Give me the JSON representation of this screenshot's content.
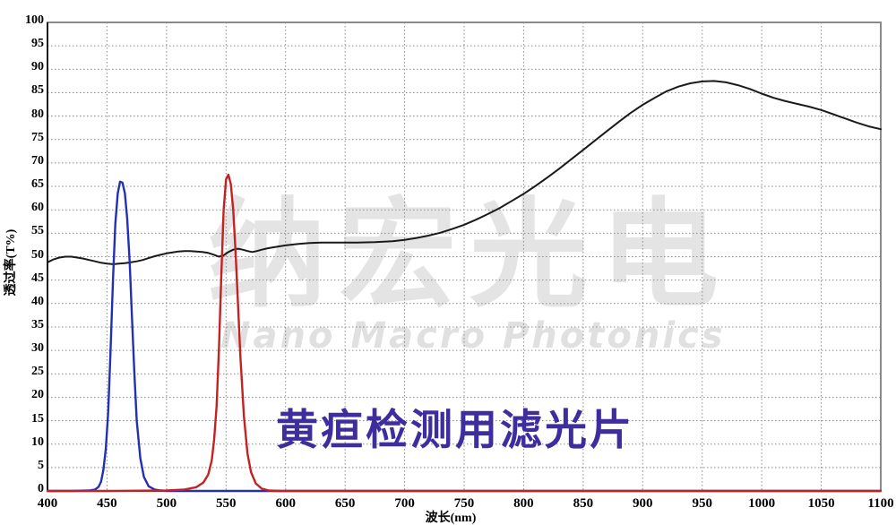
{
  "watermark": {
    "cn": "纳宏光电",
    "en": "Nano Macro Photonics"
  },
  "annotation": {
    "text": "黄疸检测用滤光片",
    "color": "#3e2d9e"
  },
  "axes": {
    "x_label": "波长(nm)",
    "y_label": "透过率(T%)",
    "x_ticks": [
      400,
      450,
      500,
      550,
      600,
      650,
      700,
      750,
      800,
      850,
      900,
      950,
      1000,
      1050,
      1100
    ],
    "y_ticks": [
      0,
      5,
      10,
      15,
      20,
      25,
      30,
      35,
      40,
      45,
      50,
      55,
      60,
      65,
      70,
      75,
      80,
      85,
      90,
      95,
      100
    ]
  },
  "colors": {
    "grid": "#8c8c8c",
    "frame": "#8a8a8a",
    "axis": "#000000",
    "watermark": "#e4e4e4",
    "annotation": "#3e2d9e"
  },
  "chart_data": {
    "type": "line",
    "title": "黄疸检测用滤光片",
    "xlabel": "波长(nm)",
    "ylabel": "透过率(T%)",
    "xlim": [
      400,
      1100
    ],
    "ylim": [
      0,
      100
    ],
    "x_tick_step": 50,
    "y_tick_step": 5,
    "grid": "dotted",
    "legend_position": "none",
    "series": [
      {
        "name": "nir-longpass-curve",
        "color": "#1a1a1a",
        "width": 2,
        "x": [
          400,
          405,
          410,
          415,
          420,
          425,
          430,
          435,
          440,
          445,
          450,
          455,
          460,
          465,
          470,
          475,
          480,
          485,
          490,
          495,
          500,
          505,
          510,
          515,
          520,
          525,
          530,
          535,
          540,
          544,
          548,
          552,
          556,
          560,
          564,
          568,
          572,
          576,
          580,
          585,
          590,
          600,
          610,
          620,
          630,
          645,
          660,
          675,
          690,
          700,
          710,
          720,
          730,
          740,
          750,
          760,
          770,
          780,
          790,
          800,
          810,
          820,
          830,
          840,
          850,
          860,
          870,
          880,
          890,
          900,
          910,
          920,
          930,
          940,
          950,
          960,
          970,
          980,
          990,
          1000,
          1010,
          1020,
          1030,
          1040,
          1050,
          1060,
          1070,
          1080,
          1090,
          1100
        ],
        "y": [
          48.8,
          49.4,
          49.8,
          50.0,
          50.0,
          49.8,
          49.6,
          49.3,
          49.0,
          48.7,
          48.5,
          48.4,
          48.5,
          48.6,
          48.8,
          49.0,
          49.3,
          49.7,
          50.1,
          50.4,
          50.7,
          50.9,
          51.1,
          51.2,
          51.2,
          51.1,
          51.0,
          50.8,
          50.4,
          50.0,
          50.3,
          51.0,
          51.5,
          51.7,
          51.5,
          51.2,
          51.0,
          51.2,
          51.5,
          51.8,
          52.0,
          52.4,
          52.7,
          52.9,
          53.0,
          53.0,
          53.0,
          53.1,
          53.3,
          53.6,
          54.0,
          54.5,
          55.1,
          55.9,
          56.8,
          57.9,
          59.1,
          60.4,
          61.9,
          63.4,
          65.1,
          66.9,
          68.8,
          70.8,
          72.8,
          74.8,
          76.8,
          78.8,
          80.7,
          82.4,
          83.9,
          85.3,
          86.3,
          87.0,
          87.4,
          87.5,
          87.2,
          86.6,
          85.8,
          84.8,
          83.9,
          83.2,
          82.6,
          82.0,
          81.3,
          80.4,
          79.5,
          78.6,
          77.8,
          77.2
        ]
      },
      {
        "name": "blue-bandpass-460nm",
        "color": "#2230b4",
        "width": 2.4,
        "x": [
          400,
          420,
          435,
          440,
          443,
          445,
          447,
          449,
          451,
          453,
          455,
          457,
          459,
          461,
          463,
          465,
          467,
          469,
          471,
          473,
          475,
          478,
          481,
          485,
          490,
          495,
          500,
          520,
          550,
          600,
          700,
          800,
          900,
          1000,
          1100
        ],
        "y": [
          0,
          0,
          0.1,
          0.3,
          0.9,
          2,
          4.5,
          9,
          17,
          30,
          45,
          57,
          63.5,
          66,
          65.8,
          63.5,
          58,
          49,
          37,
          25,
          15,
          7,
          3,
          1,
          0.3,
          0.1,
          0,
          0,
          0,
          0,
          0,
          0,
          0,
          0,
          0
        ]
      },
      {
        "name": "red-bandpass-550nm",
        "color": "#c42222",
        "width": 2.4,
        "x": [
          400,
          450,
          500,
          515,
          525,
          531,
          535,
          538,
          540,
          542,
          544,
          546,
          548,
          550,
          552,
          554,
          556,
          558,
          560,
          562,
          565,
          568,
          571,
          575,
          580,
          586,
          595,
          620,
          650,
          700,
          750,
          800,
          850,
          900,
          950,
          1000,
          1050,
          1100
        ],
        "y": [
          0,
          0,
          0.1,
          0.3,
          0.8,
          1.8,
          3.5,
          6.5,
          11,
          18,
          30,
          46,
          60,
          66.5,
          67.5,
          65.5,
          60,
          51,
          40,
          29,
          16,
          8,
          4,
          1.6,
          0.5,
          0.1,
          0,
          0,
          0,
          0,
          0,
          0,
          0,
          0,
          0,
          0,
          0,
          0
        ]
      }
    ]
  }
}
